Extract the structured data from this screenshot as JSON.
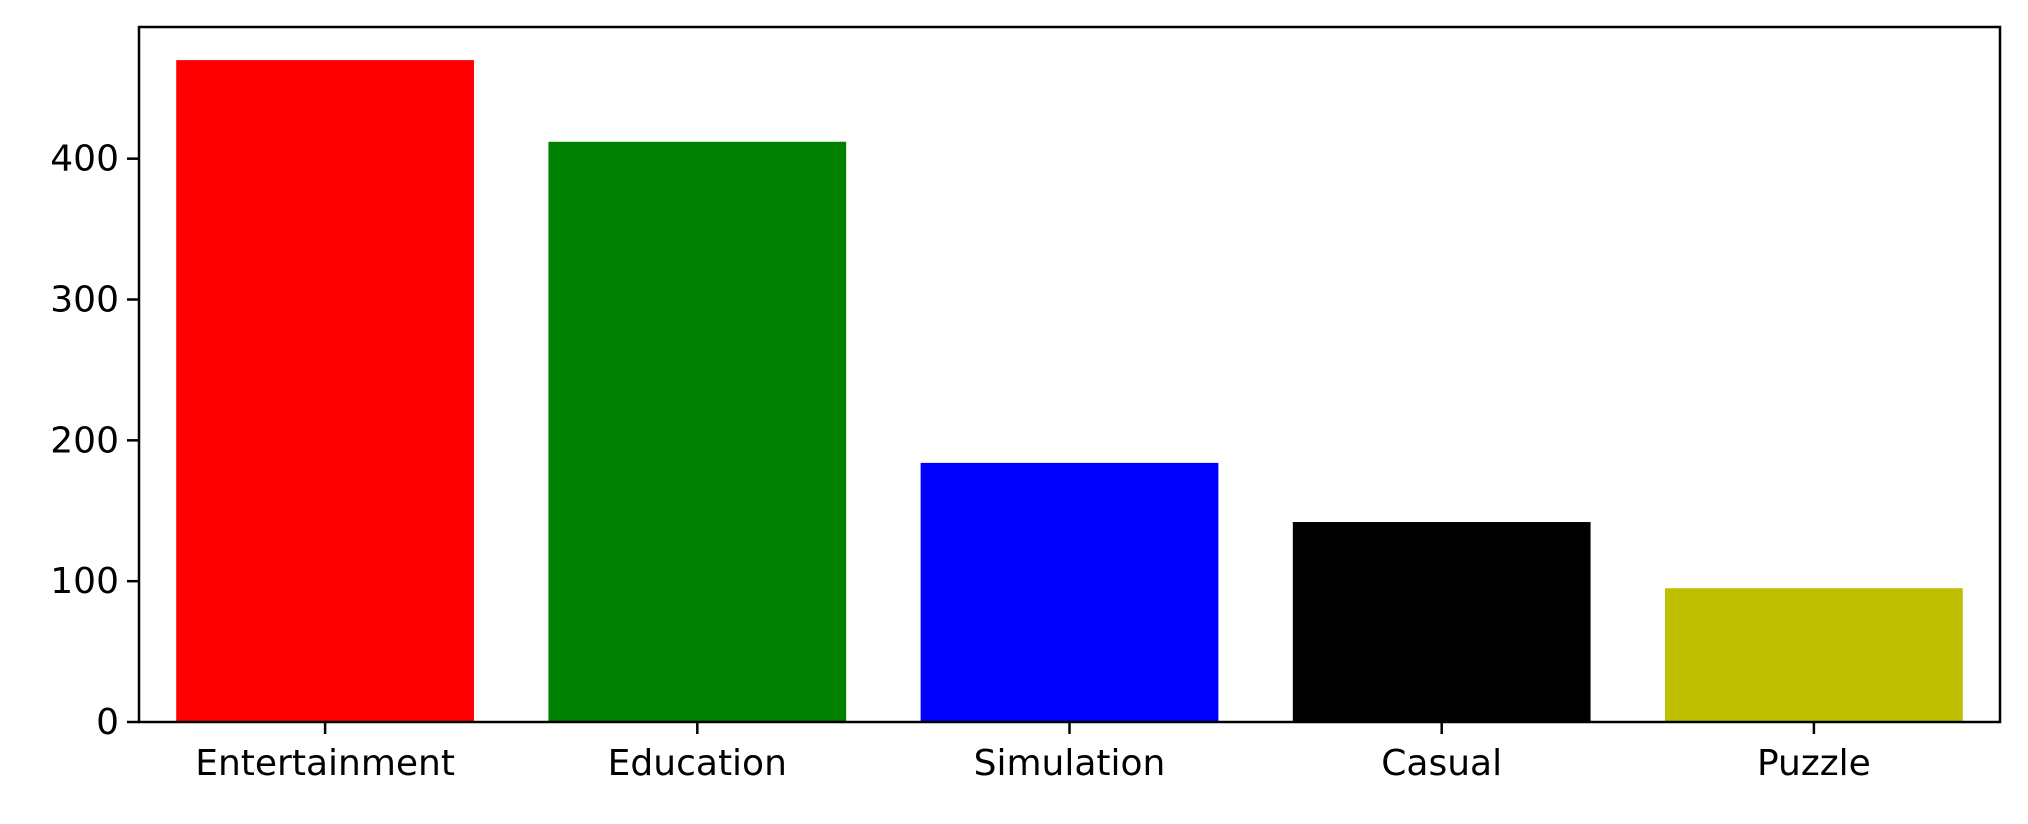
{
  "chart_data": {
    "type": "bar",
    "categories": [
      "Entertainment",
      "Education",
      "Simulation",
      "Casual",
      "Puzzle"
    ],
    "values": [
      470,
      412,
      184,
      142,
      95
    ],
    "colors": [
      "#ff0000",
      "#008000",
      "#0000ff",
      "#000000",
      "#bfbf00"
    ],
    "yticks": [
      0,
      100,
      200,
      300,
      400
    ],
    "ylim": [
      0,
      493.5
    ],
    "title": "",
    "xlabel": "",
    "ylabel": "",
    "grid": false,
    "legend": "none"
  }
}
